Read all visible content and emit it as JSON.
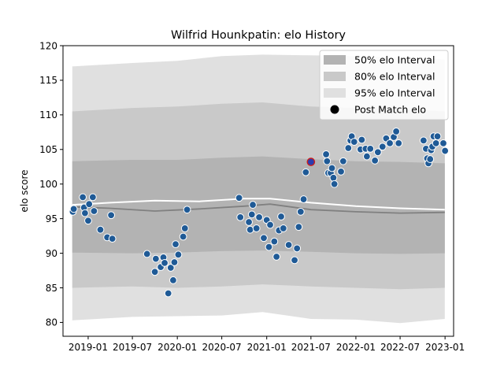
{
  "chart_data": {
    "type": "scatter",
    "title": "Wilfrid Hounkpatin: elo History",
    "xlabel": "",
    "ylabel": "elo score",
    "ylim": [
      78,
      120
    ],
    "xlim": [
      "2018-09-20",
      "2023-02-05"
    ],
    "y_ticks": [
      80,
      85,
      90,
      95,
      100,
      105,
      110,
      115,
      120
    ],
    "x_ticks": [
      "2019-01",
      "2019-07",
      "2020-01",
      "2020-07",
      "2021-01",
      "2021-07",
      "2022-01",
      "2022-07",
      "2023-01"
    ],
    "legend_position": "top-right",
    "legend": [
      {
        "label": "50% elo Interval",
        "color": "#b3b3b3"
      },
      {
        "label": "80% elo Interval",
        "color": "#c9c9c9"
      },
      {
        "label": "95% elo Interval",
        "color": "#e0e0e0"
      },
      {
        "label": "Post Match elo",
        "color": "#000000"
      }
    ],
    "bands": {
      "x": [
        "2018-10-28",
        "2019-07-01",
        "2020-01-01",
        "2020-07-01",
        "2020-12-15",
        "2021-07-01",
        "2022-01-01",
        "2022-07-01",
        "2022-12-31"
      ],
      "p95": {
        "upper": [
          117.0,
          117.5,
          117.8,
          118.5,
          118.7,
          118.6,
          118.5,
          118.3,
          118.0
        ],
        "lower": [
          80.3,
          80.8,
          80.9,
          81.0,
          81.5,
          80.5,
          80.4,
          79.9,
          80.5
        ]
      },
      "p80": {
        "upper": [
          110.5,
          111.0,
          111.2,
          111.6,
          111.8,
          111.2,
          111.0,
          110.8,
          110.5
        ],
        "lower": [
          85.0,
          85.2,
          85.0,
          85.2,
          85.5,
          85.2,
          85.0,
          84.8,
          85.0
        ]
      },
      "p50": {
        "upper": [
          103.3,
          103.5,
          103.5,
          103.8,
          104.0,
          103.6,
          103.3,
          103.2,
          103.0
        ],
        "lower": [
          90.1,
          90.0,
          90.1,
          90.3,
          90.4,
          90.2,
          90.0,
          89.9,
          90.0
        ]
      }
    },
    "mean_line": {
      "x": [
        "2018-10-28",
        "2019-04-01",
        "2019-10-01",
        "2020-04-01",
        "2020-10-01",
        "2021-01-15",
        "2021-07-01",
        "2022-01-01",
        "2022-07-01",
        "2022-12-31"
      ],
      "y": [
        96.7,
        96.5,
        96.1,
        96.4,
        96.8,
        97.1,
        96.3,
        96.0,
        95.8,
        95.9
      ]
    },
    "expected_line": {
      "x": [
        "2018-10-28",
        "2019-04-01",
        "2019-10-01",
        "2020-04-01",
        "2020-10-01",
        "2021-01-15",
        "2021-07-01",
        "2022-01-01",
        "2022-07-01",
        "2022-12-31"
      ],
      "y": [
        97.0,
        97.3,
        97.6,
        97.5,
        97.9,
        97.9,
        97.3,
        96.8,
        96.5,
        96.3
      ]
    },
    "series": [
      {
        "name": "Post Match elo",
        "points": [
          {
            "x": "2018-10-30",
            "y": 96.0
          },
          {
            "x": "2018-11-03",
            "y": 96.4
          },
          {
            "x": "2018-12-10",
            "y": 98.1
          },
          {
            "x": "2018-12-15",
            "y": 96.6
          },
          {
            "x": "2018-12-19",
            "y": 95.8
          },
          {
            "x": "2019-01-01",
            "y": 94.7
          },
          {
            "x": "2019-01-05",
            "y": 97.1
          },
          {
            "x": "2019-01-20",
            "y": 98.1
          },
          {
            "x": "2019-01-25",
            "y": 96.1
          },
          {
            "x": "2019-02-20",
            "y": 93.4
          },
          {
            "x": "2019-03-20",
            "y": 92.3
          },
          {
            "x": "2019-04-05",
            "y": 95.5
          },
          {
            "x": "2019-04-10",
            "y": 92.1
          },
          {
            "x": "2019-08-30",
            "y": 89.9
          },
          {
            "x": "2019-10-01",
            "y": 87.3
          },
          {
            "x": "2019-10-05",
            "y": 89.2
          },
          {
            "x": "2019-10-25",
            "y": 88.0
          },
          {
            "x": "2019-11-05",
            "y": 89.4
          },
          {
            "x": "2019-11-10",
            "y": 88.6
          },
          {
            "x": "2019-11-25",
            "y": 84.2
          },
          {
            "x": "2019-12-05",
            "y": 87.9
          },
          {
            "x": "2019-12-15",
            "y": 86.1
          },
          {
            "x": "2019-12-20",
            "y": 88.7
          },
          {
            "x": "2019-12-25",
            "y": 91.3
          },
          {
            "x": "2020-01-05",
            "y": 89.8
          },
          {
            "x": "2020-01-25",
            "y": 92.4
          },
          {
            "x": "2020-02-01",
            "y": 93.6
          },
          {
            "x": "2020-02-10",
            "y": 96.3
          },
          {
            "x": "2020-09-10",
            "y": 98.0
          },
          {
            "x": "2020-09-15",
            "y": 95.2
          },
          {
            "x": "2020-10-20",
            "y": 94.5
          },
          {
            "x": "2020-10-25",
            "y": 93.4
          },
          {
            "x": "2020-11-01",
            "y": 95.6
          },
          {
            "x": "2020-11-05",
            "y": 97.0
          },
          {
            "x": "2020-11-20",
            "y": 93.6
          },
          {
            "x": "2020-12-01",
            "y": 95.2
          },
          {
            "x": "2020-12-20",
            "y": 92.2
          },
          {
            "x": "2021-01-01",
            "y": 94.8
          },
          {
            "x": "2021-01-10",
            "y": 90.9
          },
          {
            "x": "2021-01-15",
            "y": 94.1
          },
          {
            "x": "2021-02-01",
            "y": 91.7
          },
          {
            "x": "2021-02-10",
            "y": 89.5
          },
          {
            "x": "2021-02-20",
            "y": 93.3
          },
          {
            "x": "2021-03-01",
            "y": 95.3
          },
          {
            "x": "2021-03-10",
            "y": 93.6
          },
          {
            "x": "2021-04-01",
            "y": 91.2
          },
          {
            "x": "2021-04-25",
            "y": 89.0
          },
          {
            "x": "2021-05-05",
            "y": 90.7
          },
          {
            "x": "2021-05-12",
            "y": 93.8
          },
          {
            "x": "2021-05-20",
            "y": 96.0
          },
          {
            "x": "2021-06-01",
            "y": 97.8
          },
          {
            "x": "2021-06-10",
            "y": 101.7
          },
          {
            "x": "2021-07-01",
            "y": 103.2,
            "highlight": true
          },
          {
            "x": "2021-09-01",
            "y": 104.3
          },
          {
            "x": "2021-09-05",
            "y": 103.3
          },
          {
            "x": "2021-09-10",
            "y": 101.6
          },
          {
            "x": "2021-09-20",
            "y": 101.6
          },
          {
            "x": "2021-09-25",
            "y": 102.3
          },
          {
            "x": "2021-10-01",
            "y": 100.9
          },
          {
            "x": "2021-10-05",
            "y": 100.0
          },
          {
            "x": "2021-11-01",
            "y": 101.8
          },
          {
            "x": "2021-11-10",
            "y": 103.3
          },
          {
            "x": "2021-12-01",
            "y": 105.2
          },
          {
            "x": "2021-12-10",
            "y": 106.3
          },
          {
            "x": "2021-12-15",
            "y": 106.9
          },
          {
            "x": "2021-12-25",
            "y": 106.1
          },
          {
            "x": "2022-01-20",
            "y": 105.0
          },
          {
            "x": "2022-01-25",
            "y": 106.4
          },
          {
            "x": "2022-02-10",
            "y": 105.1
          },
          {
            "x": "2022-02-15",
            "y": 104.0
          },
          {
            "x": "2022-03-01",
            "y": 105.1
          },
          {
            "x": "2022-03-20",
            "y": 103.4
          },
          {
            "x": "2022-04-01",
            "y": 104.6
          },
          {
            "x": "2022-04-20",
            "y": 105.4
          },
          {
            "x": "2022-05-05",
            "y": 106.6
          },
          {
            "x": "2022-05-20",
            "y": 105.9
          },
          {
            "x": "2022-06-05",
            "y": 106.8
          },
          {
            "x": "2022-06-15",
            "y": 107.6
          },
          {
            "x": "2022-06-25",
            "y": 105.9
          },
          {
            "x": "2022-10-05",
            "y": 106.3
          },
          {
            "x": "2022-10-15",
            "y": 105.1
          },
          {
            "x": "2022-10-20",
            "y": 103.7
          },
          {
            "x": "2022-10-25",
            "y": 103.0
          },
          {
            "x": "2022-11-01",
            "y": 103.6
          },
          {
            "x": "2022-11-05",
            "y": 104.9
          },
          {
            "x": "2022-11-10",
            "y": 105.4
          },
          {
            "x": "2022-11-15",
            "y": 106.9
          },
          {
            "x": "2022-11-25",
            "y": 105.9
          },
          {
            "x": "2022-12-01",
            "y": 106.9
          },
          {
            "x": "2022-12-25",
            "y": 105.9
          },
          {
            "x": "2023-01-01",
            "y": 104.8
          }
        ]
      }
    ],
    "colors": {
      "point": "#1f5a96",
      "point_edge": "#ffffff",
      "highlight_point": "#2a3cb0",
      "highlight_edge": "#c81e1e",
      "mean_line": "#808080",
      "expected_line": "#ffffff",
      "band95": "#e0e0e0",
      "band80": "#c9c9c9",
      "band50": "#b3b3b3"
    }
  }
}
